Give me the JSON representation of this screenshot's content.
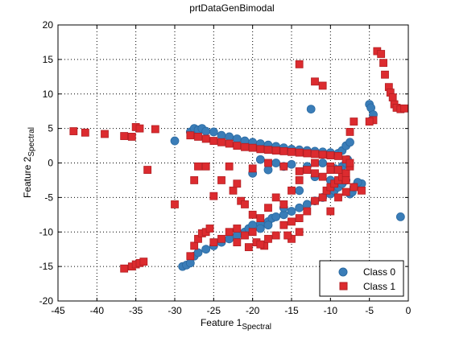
{
  "chart_data": {
    "type": "scatter",
    "title": "prtDataGenBimodal",
    "xlabel": {
      "main": "Feature 1",
      "sub": "Spectral"
    },
    "ylabel": {
      "main": "Feature 2",
      "sub": "Spectral"
    },
    "xlim": [
      -45,
      0
    ],
    "ylim": [
      -20,
      20
    ],
    "x_ticks": [
      "-45",
      "-40",
      "-35",
      "-30",
      "-25",
      "-20",
      "-15",
      "-10",
      "-5",
      "0"
    ],
    "y_ticks": [
      "-20",
      "-15",
      "-10",
      "-5",
      "0",
      "5",
      "10",
      "15",
      "20"
    ],
    "grid": true,
    "legend_position": "bottom-right",
    "series": [
      {
        "name": "Class 0",
        "marker": "circle",
        "color": "#3a7db8",
        "points": [
          [
            -29,
            -15
          ],
          [
            -28.5,
            -14.8
          ],
          [
            -28,
            -14.5
          ],
          [
            -27.5,
            -13.5
          ],
          [
            -27,
            -13
          ],
          [
            -26,
            -12.5
          ],
          [
            -25,
            -12
          ],
          [
            -24,
            -11.5
          ],
          [
            -23,
            -11
          ],
          [
            -22,
            -10.5
          ],
          [
            -21,
            -10
          ],
          [
            -20.5,
            -9.5
          ],
          [
            -20,
            -9
          ],
          [
            -19,
            -8.8
          ],
          [
            -18,
            -8.5
          ],
          [
            -17.5,
            -8
          ],
          [
            -17,
            -7.8
          ],
          [
            -16,
            -7.5
          ],
          [
            -15,
            -7
          ],
          [
            -14,
            -6.5
          ],
          [
            -13,
            -6
          ],
          [
            -12,
            -5.5
          ],
          [
            -11,
            -5
          ],
          [
            -10,
            -4.5
          ],
          [
            -9.5,
            -4
          ],
          [
            -9,
            -3.5
          ],
          [
            -8.5,
            -3
          ],
          [
            -8,
            -2.5
          ],
          [
            -7.5,
            -4.5
          ],
          [
            -7.2,
            -4.2
          ],
          [
            -12,
            -2
          ],
          [
            -10,
            -2.5
          ],
          [
            -8.5,
            -0.5
          ],
          [
            -8,
            0
          ],
          [
            -7.8,
            0.5
          ],
          [
            -30,
            3.2
          ],
          [
            -28,
            4.5
          ],
          [
            -27.5,
            5
          ],
          [
            -27,
            4.8
          ],
          [
            -26.5,
            5
          ],
          [
            -26,
            4.6
          ],
          [
            -25,
            4.5
          ],
          [
            -24,
            4
          ],
          [
            -23,
            3.8
          ],
          [
            -22,
            3.5
          ],
          [
            -21,
            3.2
          ],
          [
            -20,
            3
          ],
          [
            -19,
            2.8
          ],
          [
            -18,
            2.6
          ],
          [
            -17,
            2.4
          ],
          [
            -16,
            2.2
          ],
          [
            -15,
            2
          ],
          [
            -14,
            1.9
          ],
          [
            -13,
            1.8
          ],
          [
            -12,
            1.7
          ],
          [
            -11,
            1.6
          ],
          [
            -10,
            1.5
          ],
          [
            -9,
            1.4
          ],
          [
            -8.5,
            1.8
          ],
          [
            -8,
            2.5
          ],
          [
            -7.5,
            3
          ],
          [
            -20,
            -1.5
          ],
          [
            -18,
            -1
          ],
          [
            -16,
            -0.5
          ],
          [
            -19,
            0.5
          ],
          [
            -17,
            0
          ],
          [
            -15,
            -0.2
          ],
          [
            -13,
            -0.5
          ],
          [
            -11,
            0
          ],
          [
            -9.5,
            -0.8
          ],
          [
            -5,
            8.5
          ],
          [
            -4.8,
            8
          ],
          [
            -4.5,
            7
          ],
          [
            -4.7,
            6.2
          ],
          [
            -12.5,
            7.8
          ],
          [
            -1,
            -7.8
          ],
          [
            -6,
            -3
          ],
          [
            -6.5,
            -2.8
          ],
          [
            -7,
            -3.5
          ],
          [
            -14,
            -4
          ],
          [
            -16,
            -6.5
          ],
          [
            -18,
            -9
          ],
          [
            -19,
            -9.5
          ]
        ]
      },
      {
        "name": "Class 1",
        "marker": "square",
        "color": "#dc2b2f",
        "points": [
          [
            -43,
            4.6
          ],
          [
            -41.5,
            4.4
          ],
          [
            -39,
            4.2
          ],
          [
            -36.5,
            3.9
          ],
          [
            -35.5,
            3.8
          ],
          [
            -35,
            5.2
          ],
          [
            -34.5,
            5
          ],
          [
            -32.5,
            4.9
          ],
          [
            -33.5,
            -1
          ],
          [
            -30,
            -6
          ],
          [
            -36.5,
            -15.3
          ],
          [
            -35.5,
            -15
          ],
          [
            -35,
            -14.7
          ],
          [
            -34.5,
            -14.5
          ],
          [
            -34,
            -14.3
          ],
          [
            -28,
            -13.5
          ],
          [
            -27.5,
            -12
          ],
          [
            -27,
            -11
          ],
          [
            -26.5,
            -10.2
          ],
          [
            -26,
            -10
          ],
          [
            -25.5,
            -9.5
          ],
          [
            -25,
            -11.5
          ],
          [
            -24,
            -11
          ],
          [
            -23,
            -10
          ],
          [
            -22,
            -9.5
          ],
          [
            -21,
            -10.5
          ],
          [
            -20,
            -10
          ],
          [
            -19.5,
            -11.5
          ],
          [
            -18.5,
            -12
          ],
          [
            -18,
            -11
          ],
          [
            -17,
            -10.5
          ],
          [
            -16,
            -9
          ],
          [
            -15,
            -8.5
          ],
          [
            -14,
            -8
          ],
          [
            -13,
            -7
          ],
          [
            -12,
            -5.5
          ],
          [
            -11,
            -5
          ],
          [
            -10.5,
            -4
          ],
          [
            -10,
            -3.5
          ],
          [
            -9.5,
            -3
          ],
          [
            -9,
            -2.5
          ],
          [
            -8.5,
            -2
          ],
          [
            -8,
            -1.5
          ],
          [
            -7.5,
            -0.5
          ],
          [
            -27,
            -0.5
          ],
          [
            -27.5,
            -2.5
          ],
          [
            -26,
            -0.5
          ],
          [
            -25,
            -4.8
          ],
          [
            -24,
            -2.5
          ],
          [
            -23,
            -0.5
          ],
          [
            -22.5,
            -4
          ],
          [
            -21.5,
            -5.5
          ],
          [
            -21,
            -6
          ],
          [
            -20,
            -7.5
          ],
          [
            -19,
            -8
          ],
          [
            -18,
            -6.5
          ],
          [
            -17,
            -5
          ],
          [
            -16,
            -6
          ],
          [
            -15,
            -4
          ],
          [
            -14,
            -2.5
          ],
          [
            -13,
            -1
          ],
          [
            -12,
            -1.5
          ],
          [
            -11,
            -2
          ],
          [
            -10,
            -0.5
          ],
          [
            -9,
            -1
          ],
          [
            -8,
            -2.5
          ],
          [
            -7,
            -3.5
          ],
          [
            -6,
            -4
          ],
          [
            -28,
            4
          ],
          [
            -27,
            3.8
          ],
          [
            -26,
            3.5
          ],
          [
            -25,
            3.2
          ],
          [
            -24,
            3
          ],
          [
            -23,
            2.8
          ],
          [
            -22,
            2.5
          ],
          [
            -21,
            2.3
          ],
          [
            -20,
            2.2
          ],
          [
            -19,
            2
          ],
          [
            -18,
            1.9
          ],
          [
            -17,
            1.8
          ],
          [
            -16,
            1.7
          ],
          [
            -15,
            1.6
          ],
          [
            -14,
            1.5
          ],
          [
            -13,
            1.4
          ],
          [
            -12,
            1.3
          ],
          [
            -11,
            1.2
          ],
          [
            -10,
            1.1
          ],
          [
            -9,
            1
          ],
          [
            -8,
            0.5
          ],
          [
            -7.5,
            0
          ],
          [
            -22,
            -3
          ],
          [
            -20,
            -0.8
          ],
          [
            -18,
            0
          ],
          [
            -16,
            -0.5
          ],
          [
            -14,
            -1.2
          ],
          [
            -12,
            0
          ],
          [
            -10,
            -1
          ],
          [
            -14,
            14.3
          ],
          [
            -12,
            11.8
          ],
          [
            -11,
            11.2
          ],
          [
            -4,
            16.2
          ],
          [
            -3.5,
            15.8
          ],
          [
            -3.2,
            14.5
          ],
          [
            -3,
            12.8
          ],
          [
            -2.5,
            11
          ],
          [
            -2.3,
            10.2
          ],
          [
            -2,
            9.5
          ],
          [
            -1.8,
            8.5
          ],
          [
            -1.5,
            8
          ],
          [
            -1,
            7.8
          ],
          [
            -0.5,
            7.9
          ],
          [
            -4.5,
            6.2
          ],
          [
            -5,
            6
          ],
          [
            -7,
            6
          ],
          [
            -7.5,
            4.5
          ],
          [
            -10,
            -7
          ],
          [
            -14,
            -10
          ],
          [
            -15,
            -11
          ],
          [
            -15.5,
            -10.5
          ],
          [
            -19,
            -11.8
          ],
          [
            -20.5,
            -12.2
          ],
          [
            -22,
            -11.5
          ],
          [
            -9,
            -5
          ],
          [
            -8,
            -4.2
          ]
        ]
      }
    ]
  }
}
